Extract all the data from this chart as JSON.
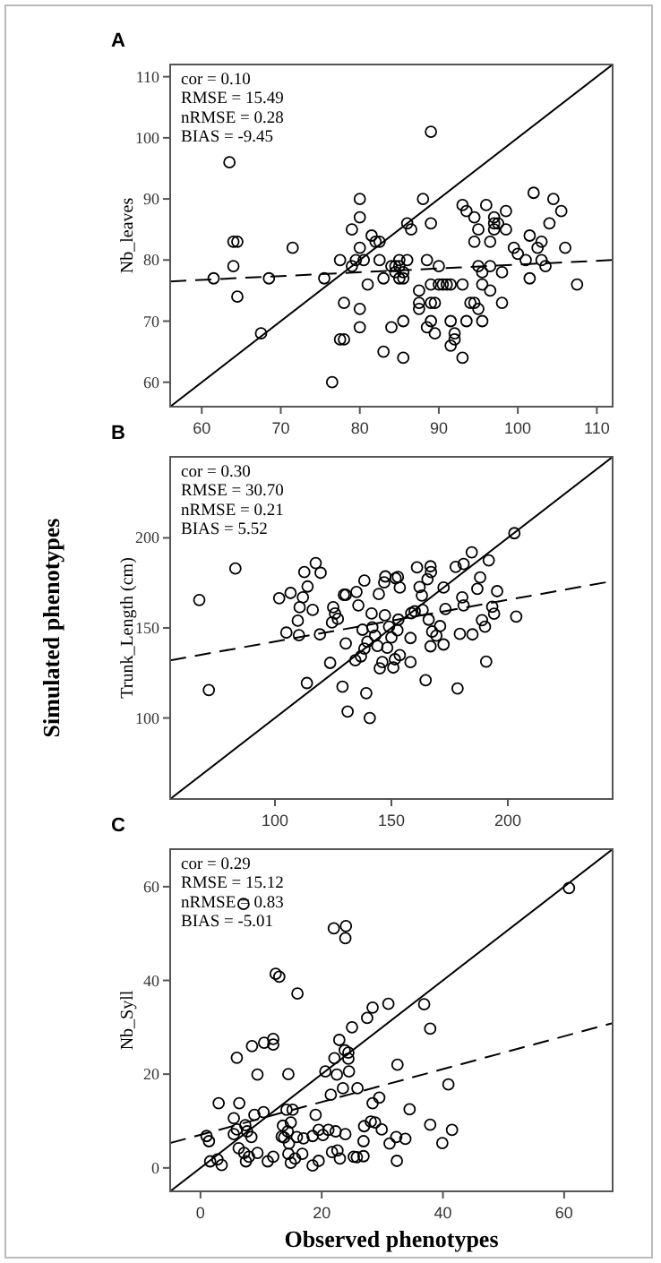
{
  "chart_data": [
    {
      "type": "scatter",
      "title": "A",
      "ylabel": "Nb_leaves",
      "xlim": [
        56,
        112
      ],
      "ylim": [
        56,
        112
      ],
      "xticks": [
        60,
        70,
        80,
        90,
        100,
        110
      ],
      "yticks": [
        60,
        70,
        80,
        90,
        100,
        110
      ],
      "grid": false,
      "annotations": [
        "cor = 0.10",
        "RMSE = 15.49",
        "nRMSE = 0.28",
        "BIAS = -9.45"
      ],
      "series": [
        {
          "type": "scatter",
          "marker": "circle",
          "color": "#000000",
          "x": [
            61.5,
            63.5,
            64,
            64.5,
            64,
            64.5,
            67.5,
            68.5,
            71.5,
            75.5,
            76.5,
            77.5,
            78,
            77.5,
            78,
            79,
            79,
            79.5,
            80,
            80,
            80,
            80,
            80,
            80.5,
            81,
            81.5,
            82,
            82.5,
            82.5,
            83,
            83,
            84,
            84,
            84.5,
            84.5,
            85,
            85,
            85,
            85.5,
            85.5,
            85.5,
            85.5,
            86,
            86,
            86.5,
            87.5,
            87.5,
            87.5,
            88,
            88.5,
            89,
            89,
            89,
            89,
            89.5,
            88.5,
            89,
            89.5,
            90,
            90,
            90.5,
            91,
            91.5,
            91.5,
            91.5,
            92,
            92,
            93,
            93,
            93,
            93.5,
            93.5,
            94,
            94.5,
            94.5,
            94.5,
            95,
            95,
            95,
            95.5,
            95.5,
            95.5,
            96,
            96.5,
            96.5,
            96.5,
            97,
            97,
            97,
            97.5,
            98,
            98,
            98.5,
            98.5,
            99.5,
            100,
            101,
            101.5,
            101.5,
            102,
            102.5,
            103,
            103,
            103.5,
            104,
            104.5,
            105.5,
            106,
            107.5
          ],
          "values": [
            77,
            96,
            83,
            83,
            79,
            74,
            68,
            77,
            82,
            77,
            60,
            67,
            67,
            80,
            73,
            85,
            79,
            80,
            90,
            87,
            82,
            72,
            69,
            80,
            76,
            84,
            83,
            83,
            80,
            65,
            77,
            79,
            69,
            79,
            78,
            79,
            80,
            77,
            78,
            77,
            70,
            64,
            80,
            86,
            85,
            75,
            73,
            72,
            90,
            80,
            86,
            101,
            76,
            73,
            73,
            69,
            70,
            68,
            79,
            76,
            76,
            76,
            76,
            70,
            66,
            67,
            68,
            76,
            64,
            89,
            88,
            70,
            73,
            73,
            83,
            87,
            72,
            85,
            79,
            78,
            76,
            70,
            89,
            75,
            83,
            79,
            87,
            86,
            85,
            86,
            78,
            73,
            88,
            85,
            82,
            81,
            80,
            84,
            77,
            91,
            82,
            83,
            80,
            79,
            86,
            90,
            88,
            82,
            76
          ]
        },
        {
          "type": "line",
          "marker": "none",
          "line_style": "solid",
          "color": "#000000",
          "x": [
            56,
            112
          ],
          "values": [
            56,
            112
          ]
        },
        {
          "type": "line",
          "marker": "none",
          "line_style": "dashed",
          "color": "#000000",
          "x": [
            56,
            112
          ],
          "values": [
            76.5,
            80
          ]
        }
      ]
    },
    {
      "type": "scatter",
      "title": "B",
      "ylabel": "Trunk_Length (cm)",
      "xlim": [
        55,
        245
      ],
      "ylim": [
        55,
        245
      ],
      "xticks": [
        100,
        150,
        200
      ],
      "yticks": [
        100,
        150,
        200
      ],
      "grid": false,
      "annotations": [
        "cor = 0.30",
        "RMSE = 30.70",
        "nRMSE = 0.21",
        "BIAS = 5.52",
        "Simulated phenotypes"
      ],
      "series": [
        {
          "type": "scatter",
          "marker": "circle",
          "color": "#000000",
          "x": [
            67.5,
            71.6,
            83,
            101.8,
            104.9,
            106.7,
            110.3,
            109.8,
            110.6,
            112,
            112.6,
            114,
            113.7,
            116.2,
            117.5,
            119.6,
            119.3,
            123.7,
            124.5,
            125,
            125.8,
            127,
            129.6,
            130.4,
            129,
            130.4,
            131.2,
            135,
            134.5,
            135.8,
            136.9,
            138.4,
            137.6,
            138.4,
            139.2,
            139.7,
            140.7,
            141.5,
            141.8,
            143,
            144.6,
            145,
            144,
            146.1,
            146.9,
            147.4,
            147.2,
            148.2,
            149,
            150,
            150.8,
            151.5,
            151.8,
            152.8,
            153.6,
            152.6,
            153.6,
            153,
            158.2,
            158.2,
            158.5,
            160,
            161,
            162.1,
            163.1,
            163.4,
            164.7,
            165.5,
            166.8,
            167,
            166,
            167.5,
            166.8,
            169.3,
            170.9,
            172.4,
            173.2,
            172.4,
            177.6,
            178.4,
            179.4,
            181,
            180.4,
            181,
            184.5,
            184.8,
            186.9,
            188.1,
            188.9,
            190.2,
            190.7,
            191.8,
            193.3,
            194.1,
            195.4,
            203.6,
            202.8
          ],
          "values": [
            165.5,
            115.5,
            183,
            166.5,
            147.4,
            169.4,
            146,
            154,
            161.5,
            167,
            181,
            173,
            119.4,
            160,
            186,
            180.6,
            146.4,
            130.6,
            153,
            161.5,
            158,
            155,
            168.4,
            168.4,
            117.4,
            141.4,
            103.6,
            170,
            132,
            162.5,
            134.2,
            176.3,
            149,
            138.5,
            113.8,
            142.4,
            100,
            158,
            150.3,
            145.7,
            168.8,
            127.6,
            140,
            131,
            175.3,
            178.6,
            157,
            139,
            150.7,
            144.7,
            128,
            132.6,
            177.6,
            178.3,
            172.4,
            148.7,
            134.9,
            154.6,
            144.4,
            131,
            158.2,
            159.2,
            183.6,
            172.7,
            168,
            160,
            121,
            177,
            184.2,
            181,
            154.6,
            148,
            139.8,
            145.7,
            151,
            172.4,
            160.5,
            140.8,
            183.9,
            116.4,
            146.7,
            185.5,
            167,
            162.5,
            192,
            146.4,
            171.7,
            178,
            154.3,
            150.7,
            131.3,
            187.5,
            161.8,
            157.9,
            170.4,
            156.3,
            202.6
          ]
        },
        {
          "type": "line",
          "marker": "none",
          "line_style": "solid",
          "color": "#000000",
          "x": [
            55,
            245
          ],
          "values": [
            55,
            245
          ]
        },
        {
          "type": "line",
          "marker": "none",
          "line_style": "dashed",
          "color": "#000000",
          "x": [
            55,
            245
          ],
          "values": [
            132,
            176
          ]
        }
      ]
    },
    {
      "type": "scatter",
      "title": "C",
      "ylabel": "Nb_Syll",
      "xlabel": "Observed phenotypes",
      "xlim": [
        -5,
        68
      ],
      "ylim": [
        -5,
        68
      ],
      "xticks": [
        0,
        20,
        40,
        60
      ],
      "yticks": [
        0,
        20,
        40,
        60
      ],
      "grid": false,
      "annotations": [
        "cor = 0.29",
        "RMSE = 15.12",
        "nRMSE = 0.83",
        "BIAS = -5.01"
      ],
      "series": [
        {
          "type": "scatter",
          "marker": "circle",
          "color": "#000000",
          "x": [
            7.1,
            22,
            24,
            23.9,
            60.8,
            12.4,
            13,
            16,
            6,
            8.5,
            10.5,
            12,
            12,
            9.4,
            14.5,
            20.6,
            22.1,
            22.9,
            23.8,
            24.4,
            24.4,
            22.5,
            24.5,
            25,
            27.5,
            28.4,
            31,
            36.9,
            37.9,
            32.5,
            21.5,
            23.5,
            25.9,
            28.4,
            29.5,
            34.5,
            40.9,
            3,
            6.4,
            5.5,
            6,
            7.4,
            7.7,
            8.4,
            8.9,
            10.4,
            1,
            1.4,
            1.6,
            2.8,
            3.5,
            5.5,
            6.3,
            7.2,
            7.5,
            8,
            9.4,
            11.1,
            12,
            13.6,
            14.2,
            13.4,
            13.8,
            14.4,
            14.5,
            14.6,
            14.9,
            15.2,
            14.9,
            15.6,
            15.9,
            16.8,
            17,
            19,
            18.5,
            18.5,
            19.5,
            19.5,
            20.2,
            21.1,
            21.7,
            22.3,
            22.6,
            23,
            23.9,
            25.3,
            25.8,
            26.9,
            26.9,
            27,
            28.1,
            28.8,
            29.9,
            31.2,
            32.3,
            32.4,
            33.8,
            37.9,
            39.9,
            41.5
          ],
          "values": [
            56.3,
            51.1,
            51.6,
            49,
            59.7,
            41.4,
            40.8,
            37.2,
            23.5,
            26,
            26.7,
            27.5,
            26.3,
            19.9,
            20,
            20.6,
            23.4,
            27.3,
            25.1,
            24.6,
            23.3,
            19.9,
            20.6,
            30,
            32,
            34.2,
            35,
            34.9,
            29.7,
            22,
            15.6,
            17,
            17,
            13.8,
            15,
            12.5,
            17.8,
            13.8,
            13.8,
            10.6,
            8.2,
            9.1,
            7.8,
            6.6,
            11.3,
            11.9,
            6.8,
            5.7,
            1.4,
            1.8,
            0.6,
            7.2,
            4.2,
            3.2,
            1.4,
            2.4,
            3.2,
            1.4,
            2.4,
            9,
            12.4,
            6.7,
            6.5,
            7.8,
            3,
            5.2,
            9.7,
            12.4,
            1.1,
            2,
            6.6,
            3,
            6.3,
            11.3,
            6.8,
            0.5,
            1.5,
            8.1,
            7,
            8.1,
            3.4,
            7.8,
            3.7,
            2,
            7.2,
            2.4,
            2.3,
            2.5,
            5.7,
            8.9,
            9.9,
            9.7,
            8.2,
            5.2,
            6.6,
            1.5,
            6.2,
            9.2,
            5.3,
            8.1
          ]
        },
        {
          "type": "line",
          "marker": "none",
          "line_style": "solid",
          "color": "#000000",
          "x": [
            -5,
            68
          ],
          "values": [
            -5,
            68
          ]
        },
        {
          "type": "line",
          "marker": "none",
          "line_style": "dashed",
          "color": "#000000",
          "x": [
            -5,
            68
          ],
          "values": [
            5.3,
            30.9
          ]
        }
      ]
    }
  ]
}
